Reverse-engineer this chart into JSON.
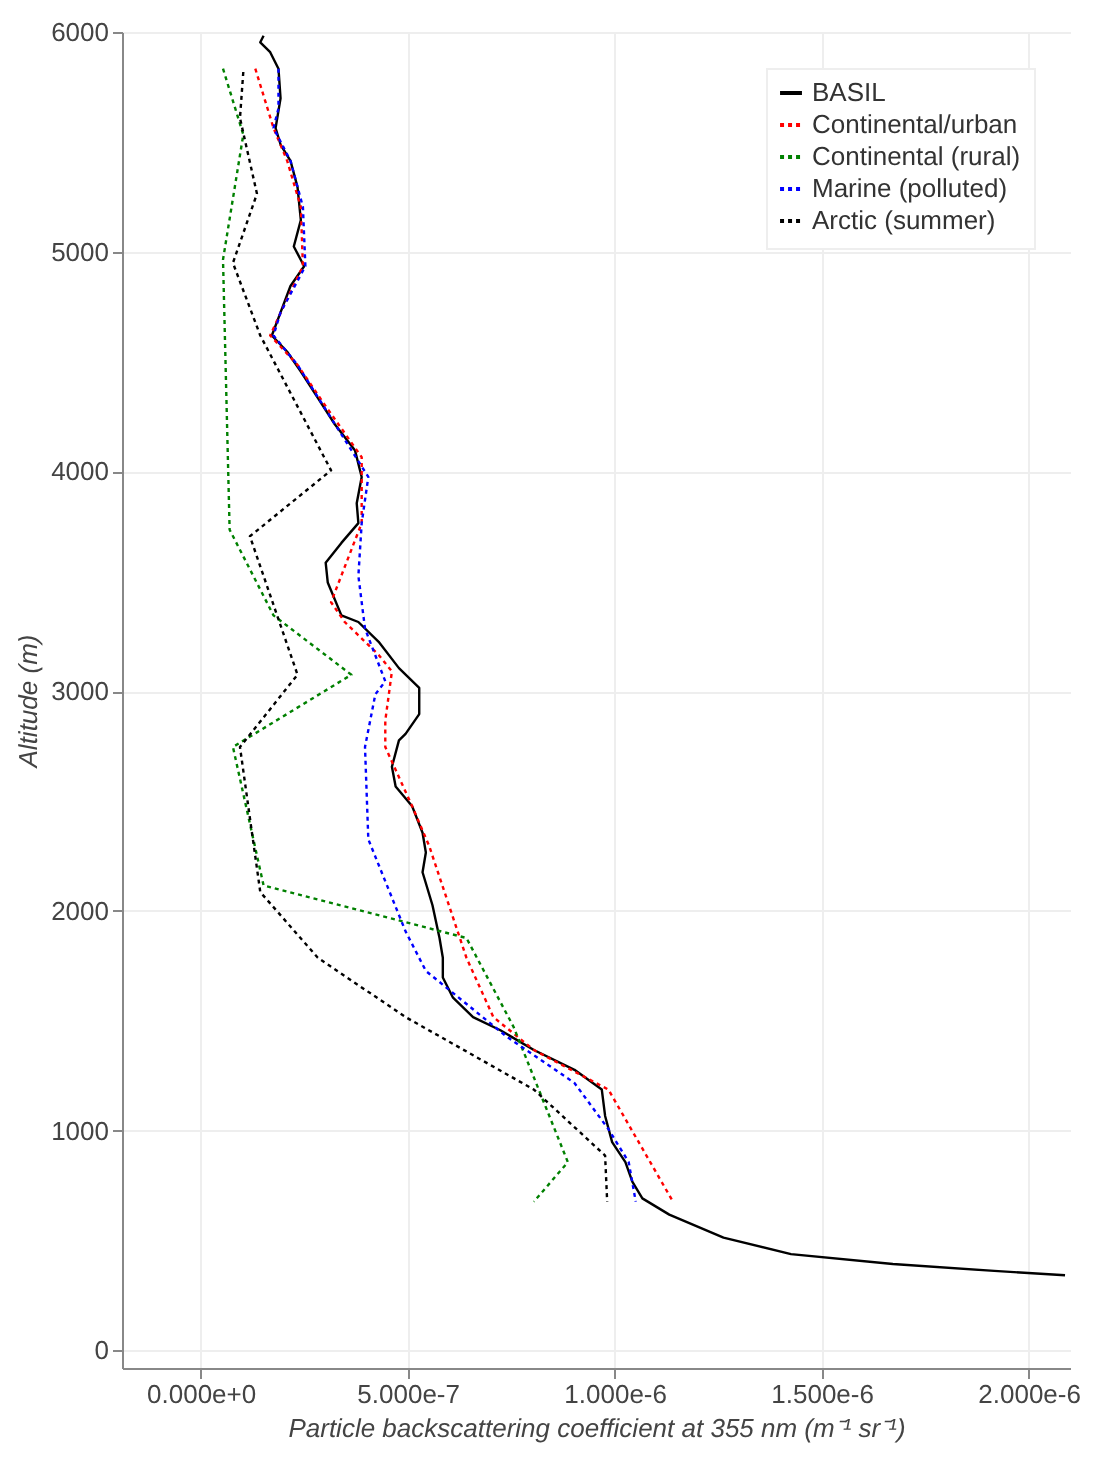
{
  "chart_data": {
    "type": "line",
    "xlabel": "Particle backscattering coefficient at 355 nm (m⁻¹ sr⁻¹)",
    "ylabel": "Altitude (m)",
    "xlim": [
      -1.9e-07,
      2.1e-06
    ],
    "ylim": [
      -80,
      6000
    ],
    "xticks": [
      {
        "value": 0,
        "label": "0.000e+0"
      },
      {
        "value": 5e-07,
        "label": "5.000e-7"
      },
      {
        "value": 1e-06,
        "label": "1.000e-6"
      },
      {
        "value": 1.5e-06,
        "label": "1.500e-6"
      },
      {
        "value": 2e-06,
        "label": "2.000e-6"
      }
    ],
    "yticks": [
      0,
      1000,
      2000,
      3000,
      4000,
      5000,
      6000
    ],
    "grid": true,
    "legend": "top right",
    "series": [
      {
        "name": "BASIL",
        "color": "#000000",
        "line_style": "solid",
        "x": [
          1.52e-07,
          1.44e-07,
          1.68e-07,
          1.88e-07,
          1.93e-07,
          1.81e-07,
          1.93e-07,
          2.17e-07,
          2.34e-07,
          2.42e-07,
          2.25e-07,
          2.5e-07,
          2.17e-07,
          1.93e-07,
          1.72e-07,
          2.09e-07,
          2.42e-07,
          2.83e-07,
          3.24e-07,
          3.73e-07,
          3.89e-07,
          3.77e-07,
          3.81e-07,
          3.4e-07,
          3.02e-07,
          3.07e-07,
          3.4e-07,
          3.81e-07,
          4.3e-07,
          4.79e-07,
          5.28e-07,
          5.28e-07,
          4.95e-07,
          4.79e-07,
          4.62e-07,
          4.71e-07,
          5.11e-07,
          5.36e-07,
          5.44e-07,
          5.36e-07,
          5.6e-07,
          5.77e-07,
          5.85e-07,
          5.85e-07,
          6.09e-07,
          6.58e-07,
          7.24e-07,
          8.05e-07,
          9.03e-07,
          9.69e-07,
          9.77e-07,
          9.94e-07,
          1.026e-06,
          1.043e-06,
          1.067e-06,
          1.132e-06,
          1.263e-06,
          1.426e-06,
          1.672e-06,
          1.917e-06,
          2.088e-06
        ],
        "values": [
          5983,
          5953,
          5908,
          5833,
          5698,
          5563,
          5488,
          5414,
          5294,
          5144,
          5024,
          4934,
          4844,
          4724,
          4619,
          4545,
          4455,
          4335,
          4215,
          4095,
          3975,
          3855,
          3765,
          3675,
          3585,
          3495,
          3345,
          3315,
          3225,
          3105,
          3015,
          2896,
          2806,
          2776,
          2656,
          2566,
          2476,
          2356,
          2266,
          2176,
          2026,
          1877,
          1787,
          1697,
          1607,
          1517,
          1457,
          1367,
          1277,
          1187,
          1067,
          948,
          857,
          767,
          692,
          618,
          513,
          438,
          393,
          362,
          342
        ]
      },
      {
        "name": "Continental/urban",
        "color": "#ff0000",
        "line_style": "dotted",
        "x": [
          1.32e-07,
          1.76e-07,
          2.09e-07,
          2.42e-07,
          2.47e-07,
          2.01e-07,
          1.68e-07,
          2.34e-07,
          2.99e-07,
          3.89e-07,
          3.89e-07,
          3.15e-07,
          3.48e-07,
          4.3e-07,
          4.62e-07,
          4.46e-07,
          4.46e-07,
          5.11e-07,
          5.52e-07,
          6.42e-07,
          7.07e-07,
          8.05e-07,
          9.85e-07,
          1.141e-06
        ],
        "values": [
          5833,
          5563,
          5414,
          5204,
          4934,
          4754,
          4619,
          4485,
          4305,
          4065,
          3765,
          3405,
          3315,
          3165,
          3090,
          2866,
          2746,
          2476,
          2296,
          1787,
          1517,
          1367,
          1187,
          677
        ]
      },
      {
        "name": "Continental (rural)",
        "color": "#008000",
        "line_style": "dotted",
        "x": [
          5.4e-08,
          1.03e-07,
          5.4e-08,
          7e-08,
          1.76e-07,
          3.64e-07,
          7.8e-08,
          1.52e-07,
          6.42e-07,
          7.56e-07,
          8.87e-07,
          8.05e-07
        ],
        "values": [
          5833,
          5533,
          4964,
          3735,
          3345,
          3075,
          2746,
          2116,
          1877,
          1472,
          857,
          677
        ]
      },
      {
        "name": "Marine (polluted)",
        "color": "#0000ff",
        "line_style": "dotted",
        "x": [
          1.88e-07,
          1.88e-07,
          1.76e-07,
          2.17e-07,
          2.47e-07,
          2.53e-07,
          1.93e-07,
          1.76e-07,
          2.34e-07,
          4.05e-07,
          3.89e-07,
          3.81e-07,
          3.97e-07,
          4.46e-07,
          4.22e-07,
          3.97e-07,
          4.05e-07,
          4.95e-07,
          5.44e-07,
          7.4e-07,
          9.03e-07,
          9.85e-07,
          1.034e-06,
          1.051e-06
        ],
        "values": [
          5833,
          5653,
          5563,
          5414,
          5204,
          4934,
          4724,
          4619,
          4485,
          3975,
          3765,
          3525,
          3285,
          3045,
          2986,
          2746,
          2326,
          1907,
          1727,
          1427,
          1217,
          1007,
          857,
          677
        ]
      },
      {
        "name": "Arctic (summer)",
        "color": "#000000",
        "line_style": "dotted",
        "x": [
          1.03e-07,
          9.5e-08,
          1.36e-07,
          7.8e-08,
          1.44e-07,
          3.15e-07,
          1.19e-07,
          2.34e-07,
          9.5e-08,
          1.44e-07,
          2.83e-07,
          4.95e-07,
          8.05e-07,
          9.77e-07,
          9.82e-07
        ],
        "values": [
          5818,
          5608,
          5264,
          4949,
          4619,
          4005,
          3705,
          3075,
          2746,
          2086,
          1787,
          1517,
          1187,
          887,
          677
        ]
      }
    ]
  }
}
